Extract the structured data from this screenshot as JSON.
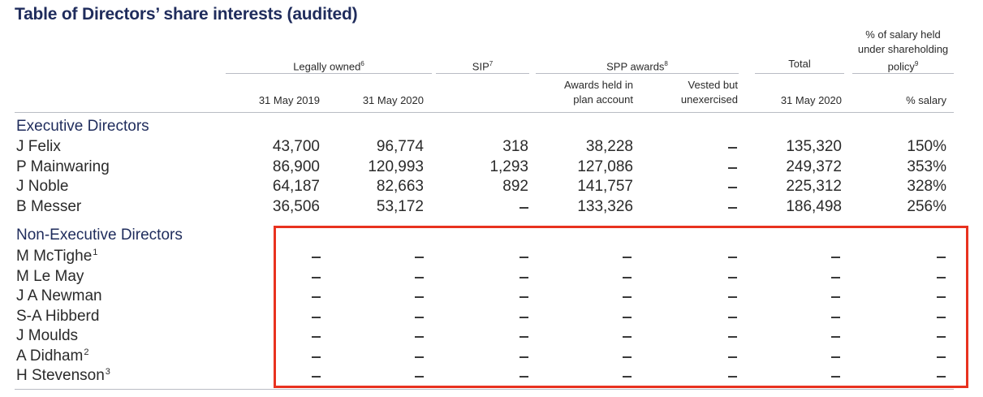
{
  "title": "Table of Directors’ share interests (audited)",
  "headers": {
    "legally_owned": "Legally owned",
    "legally_owned_note": "6",
    "sip": "SIP",
    "sip_note": "7",
    "spp_awards": "SPP awards",
    "spp_note": "8",
    "total": "Total",
    "salary_policy_line1": "% of salary held",
    "salary_policy_line2": "under shareholding",
    "salary_policy_line3": "policy",
    "salary_policy_note": "9",
    "col_2019": "31 May 2019",
    "col_2020": "31 May 2020",
    "awards_held_line1": "Awards held in",
    "awards_held_line2": "plan account",
    "vested_line1": "Vested but",
    "vested_line2": "unexercised",
    "total_2020": "31 May 2020",
    "pct_salary": "% salary"
  },
  "sections": {
    "executive": "Executive Directors",
    "non_executive": "Non-Executive Directors"
  },
  "executive_rows": [
    {
      "name": "J Felix",
      "note": "",
      "v": [
        "43,700",
        "96,774",
        "318",
        "38,228",
        "–",
        "135,320",
        "150%"
      ]
    },
    {
      "name": "P Mainwaring",
      "note": "",
      "v": [
        "86,900",
        "120,993",
        "1,293",
        "127,086",
        "–",
        "249,372",
        "353%"
      ]
    },
    {
      "name": "J Noble",
      "note": "",
      "v": [
        "64,187",
        "82,663",
        "892",
        "141,757",
        "–",
        "225,312",
        "328%"
      ]
    },
    {
      "name": "B Messer",
      "note": "",
      "v": [
        "36,506",
        "53,172",
        "–",
        "133,326",
        "–",
        "186,498",
        "256%"
      ]
    }
  ],
  "non_executive_rows": [
    {
      "name": "M McTighe",
      "note": "1"
    },
    {
      "name": "M Le May",
      "note": ""
    },
    {
      "name": "J A Newman",
      "note": ""
    },
    {
      "name": "S-A Hibberd",
      "note": ""
    },
    {
      "name": "J Moulds",
      "note": ""
    },
    {
      "name": "A Didham",
      "note": "2"
    },
    {
      "name": "H Stevenson",
      "note": "3"
    }
  ],
  "colors": {
    "heading": "#1f2c5c",
    "highlight_border": "#e8321f",
    "rule": "#b9bcc4"
  }
}
